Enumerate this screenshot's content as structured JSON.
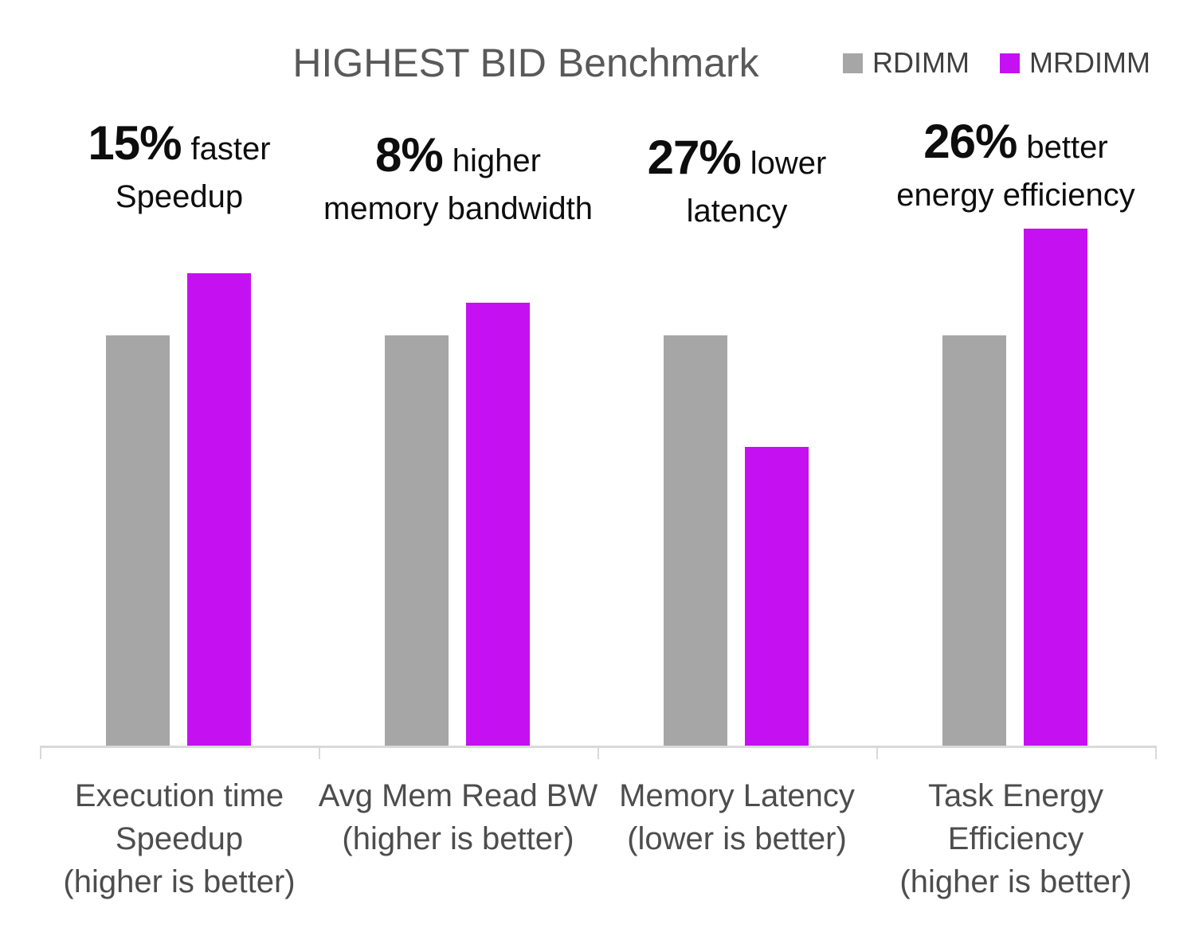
{
  "chart_data": {
    "type": "bar",
    "title": "HIGHEST BID Benchmark",
    "legend_position": "top-right",
    "grid": false,
    "y_axis_visible": false,
    "ylim": [
      0,
      1.4
    ],
    "categories": [
      "Execution time Speedup (higher is better)",
      "Avg Mem Read BW (higher is better)",
      "Memory Latency (lower is better)",
      "Task Energy Efficiency (higher is better)"
    ],
    "category_label_lines": [
      [
        "Execution time",
        "Speedup",
        "(higher is better)"
      ],
      [
        "Avg Mem Read BW",
        "(higher is better)"
      ],
      [
        "Memory Latency",
        "(lower is better)"
      ],
      [
        "Task Energy",
        "Efficiency",
        "(higher is better)"
      ]
    ],
    "series": [
      {
        "name": "RDIMM",
        "color": "#a6a6a6",
        "values": [
          1.0,
          1.0,
          1.0,
          1.0
        ]
      },
      {
        "name": "MRDIMM",
        "color": "#c511f2",
        "values": [
          1.15,
          1.08,
          0.73,
          1.26
        ]
      }
    ],
    "annotations": [
      {
        "value": "15%",
        "qualifier": "faster",
        "line2": "Speedup"
      },
      {
        "value": "8%",
        "qualifier": "higher",
        "line2": "memory bandwidth"
      },
      {
        "value": "27%",
        "qualifier": "lower",
        "line2": "latency"
      },
      {
        "value": "26%",
        "qualifier": "better",
        "line2": "energy efficiency"
      }
    ],
    "colors": {
      "title_text": "#595959",
      "legend_text": "#404040",
      "annotation_text": "#0d0d0d",
      "axis_line": "#d9d9d9",
      "category_text": "#4d4d4d",
      "background": "#ffffff"
    }
  }
}
